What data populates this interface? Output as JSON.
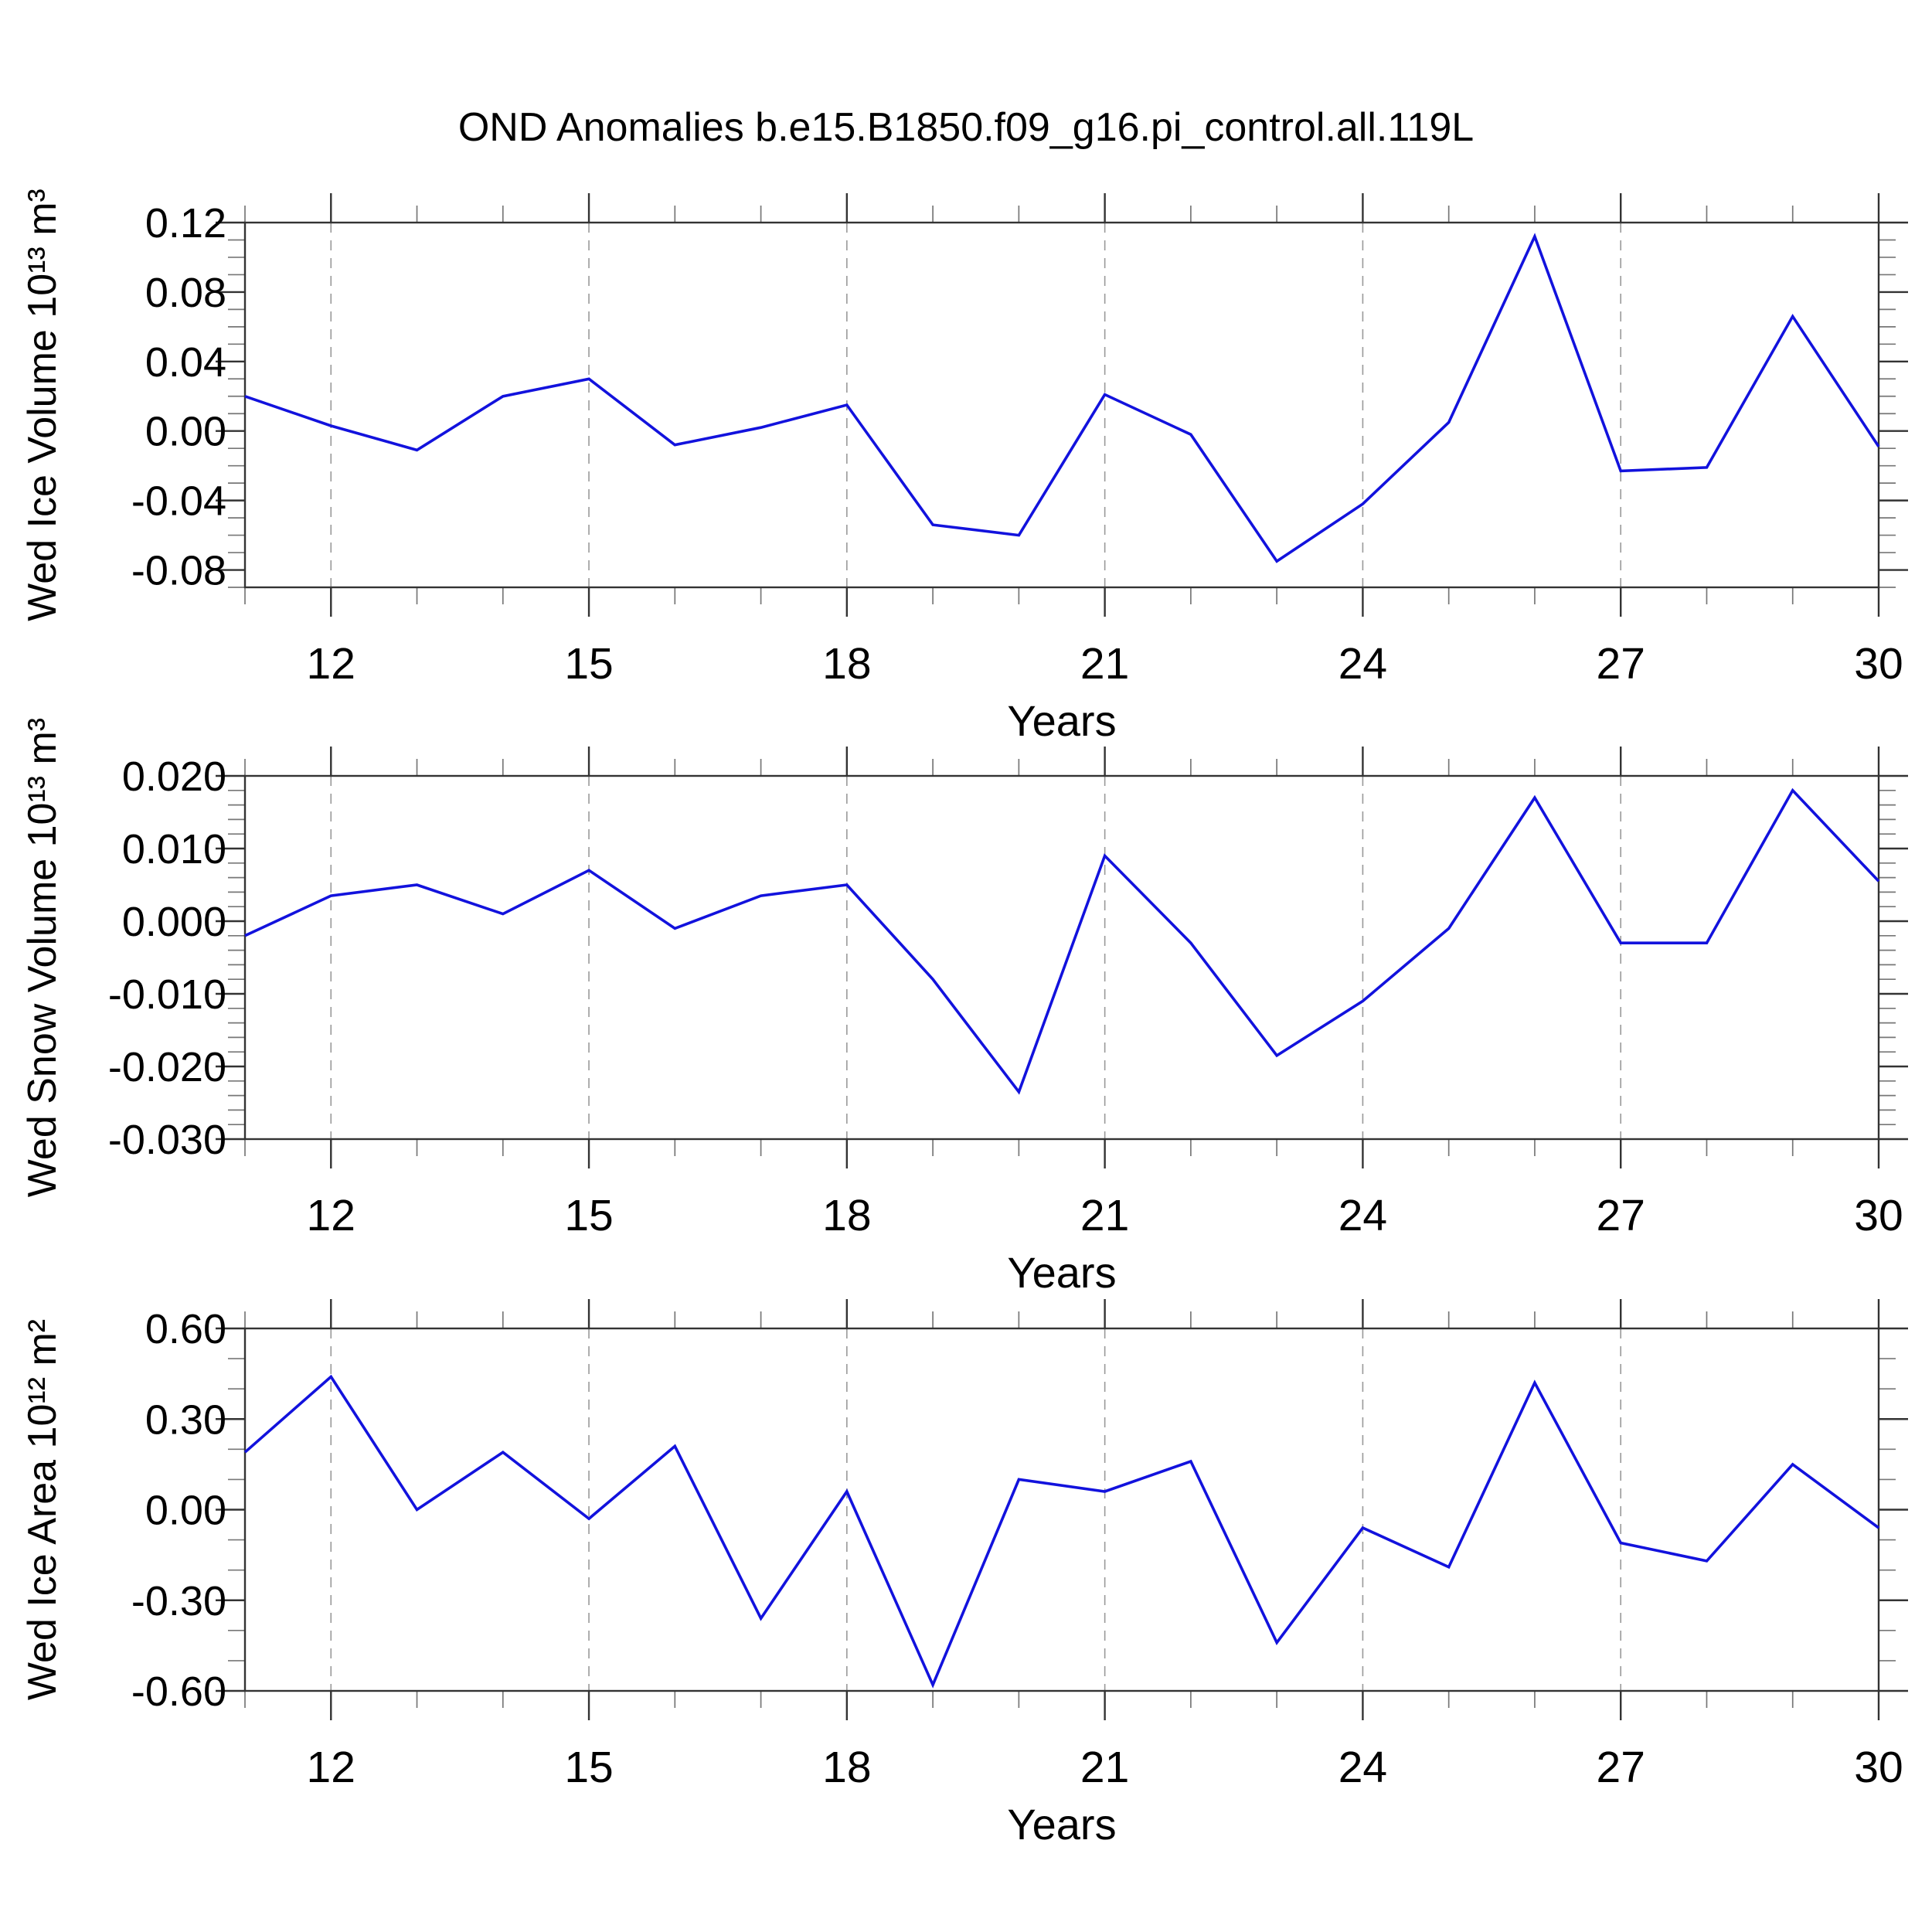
{
  "chart_data": {
    "type": "line",
    "title": "OND Anomalies b.e15.B1850.f09_g16.pi_control.all.119L",
    "xlabel": "Years",
    "x": [
      11,
      12,
      13,
      14,
      15,
      16,
      17,
      18,
      19,
      20,
      21,
      22,
      23,
      24,
      25,
      26,
      27,
      28,
      29,
      30
    ],
    "x_range": [
      11,
      30
    ],
    "x_major_ticks": [
      12,
      15,
      18,
      21,
      24,
      27,
      30
    ],
    "x_minor_step": 1,
    "grid": "vertical dashed gridlines at major x ticks",
    "legend": "none",
    "line_color": "#1212dd",
    "frame_color": "#333333",
    "gridline_color": "#999999",
    "panels": [
      {
        "name": "wed-ice-volume",
        "ylabel": "Wed Ice Volume 10¹³ m³",
        "y_range": [
          -0.09,
          0.12
        ],
        "y_major_ticks": [
          0.12,
          0.08,
          0.04,
          0.0,
          -0.04,
          -0.08
        ],
        "y_tick_labels": [
          "0.12",
          "0.08",
          "0.04",
          "0.00",
          "-0.04",
          "-0.08"
        ],
        "y_minor_step": 0.01,
        "values": [
          0.02,
          0.003,
          -0.011,
          0.02,
          0.03,
          -0.008,
          0.002,
          0.015,
          -0.054,
          -0.06,
          0.021,
          -0.002,
          -0.075,
          -0.042,
          0.005,
          0.112,
          -0.023,
          -0.021,
          0.066,
          -0.009
        ]
      },
      {
        "name": "wed-snow-volume",
        "ylabel": "Wed Snow Volume 10¹³ m³",
        "y_range": [
          -0.03,
          0.02
        ],
        "y_major_ticks": [
          0.02,
          0.01,
          0.0,
          -0.01,
          -0.02,
          -0.03
        ],
        "y_tick_labels": [
          "0.020",
          "0.010",
          "0.000",
          "-0.010",
          "-0.020",
          "-0.030"
        ],
        "y_minor_step": 0.002,
        "values": [
          -0.002,
          0.0035,
          0.005,
          0.001,
          0.007,
          -0.001,
          0.0035,
          0.005,
          -0.008,
          -0.0235,
          0.009,
          -0.003,
          -0.0185,
          -0.011,
          -0.001,
          0.017,
          -0.003,
          -0.003,
          0.018,
          0.0055
        ]
      },
      {
        "name": "wed-ice-area",
        "ylabel": "Wed Ice Area 10¹² m²",
        "y_range": [
          -0.6,
          0.6
        ],
        "y_major_ticks": [
          0.6,
          0.3,
          0.0,
          -0.3,
          -0.6
        ],
        "y_tick_labels": [
          "0.60",
          "0.30",
          "0.00",
          "-0.30",
          "-0.60"
        ],
        "y_minor_step": 0.1,
        "values": [
          0.19,
          0.44,
          0.0,
          0.19,
          -0.03,
          0.21,
          -0.36,
          0.06,
          -0.58,
          0.1,
          0.06,
          0.16,
          -0.44,
          -0.06,
          -0.19,
          0.42,
          -0.11,
          -0.17,
          0.15,
          -0.06
        ]
      }
    ]
  }
}
